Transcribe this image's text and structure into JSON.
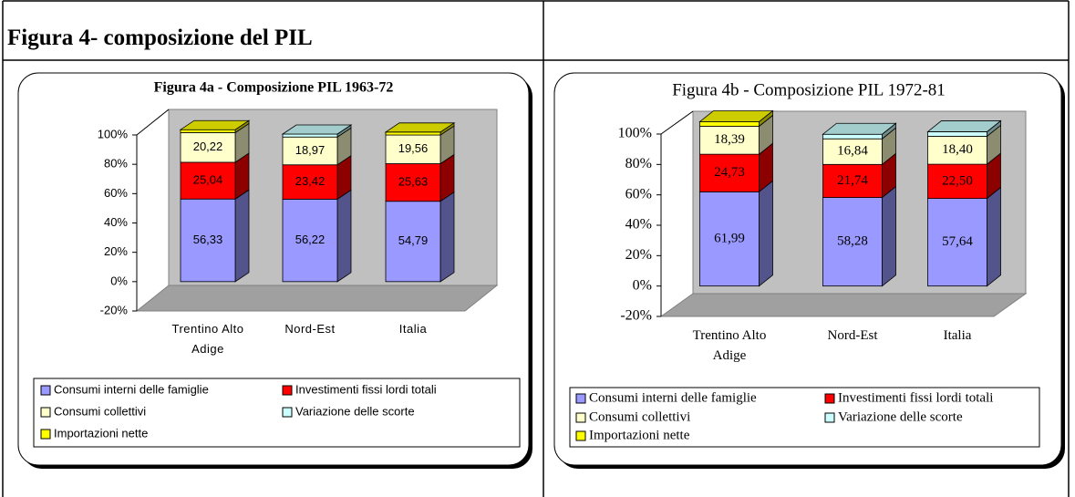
{
  "header": {
    "title": "Figura 4- composizione del PIL"
  },
  "chart_data": [
    {
      "type": "bar",
      "stacked": true,
      "title": "Figura 4a - Composizione PIL 1963-72",
      "categories": [
        "Trentino Alto Adige",
        "Nord-Est",
        "Italia"
      ],
      "series": [
        {
          "name": "Consumi interni delle famiglie",
          "color": "#9999ff",
          "values": [
            56.33,
            56.22,
            54.79
          ],
          "value_labels": [
            "56,33",
            "56,22",
            "54,79"
          ]
        },
        {
          "name": "Investimenti fissi lordi totali",
          "color": "#ff0000",
          "values": [
            25.04,
            23.42,
            25.63
          ],
          "value_labels": [
            "25,04",
            "23,42",
            "25,63"
          ]
        },
        {
          "name": "Consumi collettivi",
          "color": "#ffffcc",
          "values": [
            20.22,
            18.97,
            19.56
          ],
          "value_labels": [
            "20,22",
            "18,97",
            "19,56"
          ]
        },
        {
          "name": "Variazione delle scorte",
          "color": "#ccffff",
          "values": [
            0,
            2,
            0
          ]
        },
        {
          "name": "Importazioni nette",
          "color": "#ffff00",
          "values": [
            2,
            0,
            2
          ]
        }
      ],
      "ylim": [
        -20,
        100
      ],
      "yticks": [
        {
          "value": -20,
          "label": "-20%"
        },
        {
          "value": 0,
          "label": "0%"
        },
        {
          "value": 20,
          "label": "20%"
        },
        {
          "value": 40,
          "label": "40%"
        },
        {
          "value": 60,
          "label": "60%"
        },
        {
          "value": 80,
          "label": "80%"
        },
        {
          "value": 100,
          "label": "100%"
        }
      ]
    },
    {
      "type": "bar",
      "stacked": true,
      "title": "Figura 4b - Composizione PIL 1972-81",
      "categories": [
        "Trentino Alto Adige",
        "Nord-Est",
        "Italia"
      ],
      "series": [
        {
          "name": "Consumi interni delle famiglie",
          "color": "#9999ff",
          "values": [
            61.99,
            58.28,
            57.64
          ],
          "value_labels": [
            "61,99",
            "58,28",
            "57,64"
          ]
        },
        {
          "name": "Investimenti fissi lordi totali",
          "color": "#ff0000",
          "values": [
            24.73,
            21.74,
            22.5
          ],
          "value_labels": [
            "24,73",
            "21,74",
            "22,50"
          ]
        },
        {
          "name": "Consumi collettivi",
          "color": "#ffffcc",
          "values": [
            18.39,
            16.84,
            18.4
          ],
          "value_labels": [
            "18,39",
            "16,84",
            "18,40"
          ]
        },
        {
          "name": "Variazione delle scorte",
          "color": "#ccffff",
          "values": [
            0,
            3,
            3
          ]
        },
        {
          "name": "Importazioni nette",
          "color": "#ffff00",
          "values": [
            3,
            0,
            0
          ]
        }
      ],
      "ylim": [
        -20,
        100
      ],
      "yticks": [
        {
          "value": -20,
          "label": "-20%"
        },
        {
          "value": 0,
          "label": "0%"
        },
        {
          "value": 20,
          "label": "20%"
        },
        {
          "value": 40,
          "label": "40%"
        },
        {
          "value": 60,
          "label": "60%"
        },
        {
          "value": 80,
          "label": "80%"
        },
        {
          "value": 100,
          "label": "100%"
        }
      ]
    }
  ]
}
